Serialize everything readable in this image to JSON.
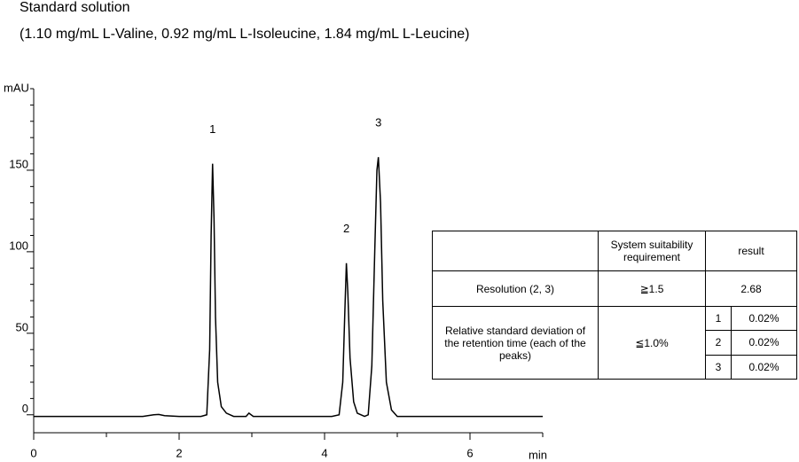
{
  "title": "Standard solution",
  "subtitle": "(1.10 mg/mL L-Valine, 0.92 mg/mL L-Isoleucine, 1.84 mg/mL L-Leucine)",
  "chart_data": {
    "type": "line",
    "ylabel": "mAU",
    "xlabel": "min",
    "xlim": [
      0,
      7
    ],
    "xticks": [
      0,
      2,
      4,
      6
    ],
    "xminorticks": [
      1,
      3,
      5,
      7
    ],
    "ylim": [
      -11,
      200
    ],
    "yticks": [
      0,
      50,
      100,
      150
    ],
    "yminorticks": [
      10,
      20,
      30,
      40,
      60,
      70,
      80,
      90,
      110,
      120,
      130,
      140,
      160,
      170,
      180,
      190,
      200
    ],
    "annotations": [
      "1",
      "2",
      "3"
    ],
    "series": [
      {
        "color": "#000000",
        "x": [
          0,
          1.5,
          1.65,
          1.72,
          1.8,
          2.0,
          2.3,
          2.38,
          2.42,
          2.44,
          2.46,
          2.48,
          2.5,
          2.53,
          2.58,
          2.65,
          2.75,
          2.92,
          2.96,
          3.02,
          3.6,
          4.1,
          4.2,
          4.25,
          4.28,
          4.3,
          4.32,
          4.35,
          4.4,
          4.45,
          4.55,
          4.6,
          4.65,
          4.69,
          4.72,
          4.74,
          4.77,
          4.8,
          4.85,
          4.92,
          5.0,
          7.0
        ],
        "values": [
          -1,
          -1,
          0,
          0.2,
          -0.5,
          -1,
          -1,
          0,
          40,
          110,
          154,
          120,
          60,
          20,
          5,
          1,
          -1,
          -1,
          1,
          -1,
          -1,
          -1,
          0,
          20,
          65,
          93,
          75,
          35,
          8,
          1,
          -1,
          0,
          30,
          100,
          150,
          158,
          130,
          70,
          20,
          3,
          -1,
          -1
        ]
      }
    ]
  },
  "table": {
    "header": {
      "requirement": "System  suitability requirement",
      "result": "result"
    },
    "resolution": {
      "label": "Resolution (2, 3)",
      "requirement": "≧1.5",
      "result": "2.68"
    },
    "rsd": {
      "label": "Relative standard deviation of the retention time (each of the peaks)",
      "requirement": "≦1.0%",
      "rows": [
        [
          "1",
          "0.02%"
        ],
        [
          "2",
          "0.02%"
        ],
        [
          "3",
          "0.02%"
        ]
      ]
    }
  }
}
